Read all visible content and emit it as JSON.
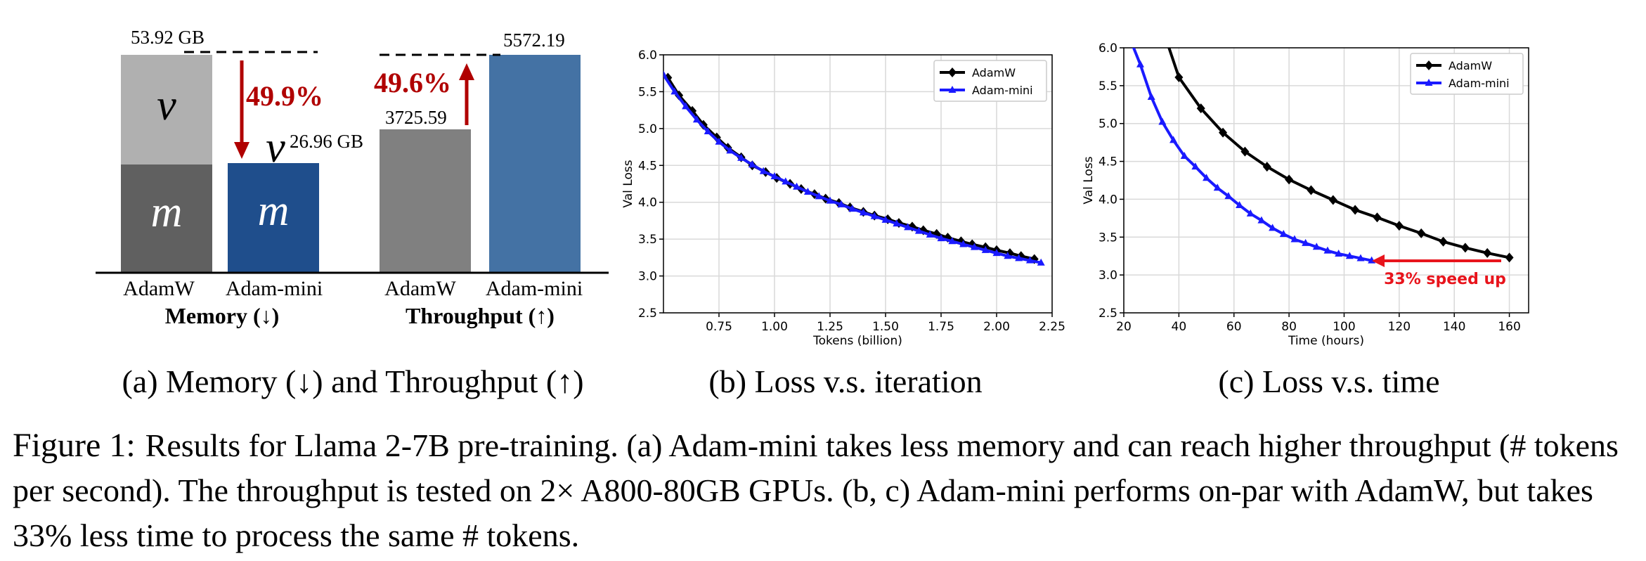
{
  "panels": {
    "a": {
      "subcaption": "(a) Memory (↓) and Throughput (↑)",
      "memory": {
        "group_label": "Memory (↓)",
        "bars": [
          {
            "name": "AdamW",
            "total_value": 53.92,
            "label": "53.92 GB",
            "m_segment": "m",
            "v_segment": "v",
            "m_fraction": 0.5,
            "colors": {
              "m": "#606060",
              "v": "#b0b0b0"
            }
          },
          {
            "name": "Adam-mini",
            "total_value": 26.96,
            "label": "26.96 GB",
            "m_segment": "m",
            "v_segment": "v",
            "colors": {
              "m": "#1f4e8c"
            }
          }
        ],
        "reduction_label": "49.9%"
      },
      "throughput": {
        "group_label": "Throughput (↑)",
        "bars": [
          {
            "name": "AdamW",
            "value": 3725.59,
            "label": "3725.59",
            "color": "#808080"
          },
          {
            "name": "Adam-mini",
            "value": 5572.19,
            "label": "5572.19",
            "color": "#4472a4"
          }
        ],
        "increase_label": "49.6%"
      },
      "accent_color": "#b00000"
    },
    "b": {
      "subcaption": "(b) Loss v.s. iteration"
    },
    "c": {
      "subcaption": "(c) Loss v.s. time",
      "annotation": "33% speed up",
      "annotation_color": "#e8141c"
    }
  },
  "chart_data": [
    {
      "type": "bar",
      "title": "Memory (↓)",
      "categories": [
        "AdamW",
        "Adam-mini"
      ],
      "unit": "GB",
      "series": [
        {
          "name": "m",
          "values": [
            26.96,
            26.96
          ]
        },
        {
          "name": "v",
          "values": [
            26.96,
            0
          ]
        }
      ],
      "totals": [
        53.92,
        26.96
      ],
      "annotation": "49.9%"
    },
    {
      "type": "bar",
      "title": "Throughput (↑)",
      "categories": [
        "AdamW",
        "Adam-mini"
      ],
      "values": [
        3725.59,
        5572.19
      ],
      "annotation": "49.6%"
    },
    {
      "type": "line",
      "xlabel": "Tokens (billion)",
      "ylabel": "Val Loss",
      "xlim": [
        0.5,
        2.25
      ],
      "ylim": [
        2.5,
        6.0
      ],
      "xticks": [
        "0.75",
        "1.00",
        "1.25",
        "1.50",
        "1.75",
        "2.00",
        "2.25"
      ],
      "yticks": [
        "2.5",
        "3.0",
        "3.5",
        "4.0",
        "4.5",
        "5.0",
        "5.5",
        "6.0"
      ],
      "grid": true,
      "legend_position": "top-right",
      "series": [
        {
          "name": "AdamW",
          "color": "#000000",
          "marker": "diamond",
          "x": [
            0.52,
            0.57,
            0.63,
            0.68,
            0.74,
            0.79,
            0.85,
            0.9,
            0.96,
            1.01,
            1.07,
            1.12,
            1.18,
            1.23,
            1.29,
            1.34,
            1.4,
            1.45,
            1.51,
            1.56,
            1.62,
            1.67,
            1.73,
            1.78,
            1.84,
            1.89,
            1.95,
            2.0,
            2.06,
            2.11,
            2.17
          ],
          "y": [
            5.69,
            5.45,
            5.24,
            5.05,
            4.88,
            4.74,
            4.61,
            4.5,
            4.41,
            4.33,
            4.25,
            4.18,
            4.11,
            4.05,
            3.99,
            3.93,
            3.87,
            3.82,
            3.77,
            3.72,
            3.67,
            3.62,
            3.57,
            3.52,
            3.47,
            3.43,
            3.39,
            3.35,
            3.31,
            3.27,
            3.23
          ]
        },
        {
          "name": "Adam-mini",
          "color": "#1a1aff",
          "marker": "triangle",
          "x": [
            0.5,
            0.55,
            0.6,
            0.65,
            0.7,
            0.75,
            0.8,
            0.85,
            0.9,
            0.95,
            1.0,
            1.05,
            1.1,
            1.15,
            1.2,
            1.25,
            1.3,
            1.35,
            1.4,
            1.45,
            1.5,
            1.55,
            1.6,
            1.65,
            1.7,
            1.75,
            1.8,
            1.85,
            1.9,
            1.95,
            2.0,
            2.05,
            2.1,
            2.15,
            2.2
          ],
          "y": [
            5.73,
            5.5,
            5.3,
            5.12,
            4.96,
            4.82,
            4.7,
            4.6,
            4.51,
            4.42,
            4.35,
            4.28,
            4.21,
            4.14,
            4.08,
            4.02,
            3.97,
            3.91,
            3.86,
            3.81,
            3.76,
            3.71,
            3.66,
            3.61,
            3.56,
            3.51,
            3.47,
            3.43,
            3.39,
            3.35,
            3.31,
            3.27,
            3.24,
            3.21,
            3.18
          ]
        }
      ]
    },
    {
      "type": "line",
      "xlabel": "Time (hours)",
      "ylabel": "Val Loss",
      "xlim": [
        20,
        167
      ],
      "ylim": [
        2.5,
        6.0
      ],
      "xticks": [
        "20",
        "40",
        "60",
        "80",
        "100",
        "120",
        "140",
        "160"
      ],
      "yticks": [
        "2.5",
        "3.0",
        "3.5",
        "4.0",
        "4.5",
        "5.0",
        "5.5",
        "6.0"
      ],
      "grid": true,
      "legend_position": "top-right",
      "annotation": "33% speed up",
      "series": [
        {
          "name": "AdamW",
          "color": "#000000",
          "marker": "diamond",
          "x": [
            33,
            40,
            48,
            56,
            64,
            72,
            80,
            88,
            96,
            104,
            112,
            120,
            128,
            136,
            144,
            152,
            160
          ],
          "y": [
            6.37,
            5.61,
            5.2,
            4.88,
            4.63,
            4.43,
            4.26,
            4.12,
            3.99,
            3.86,
            3.76,
            3.65,
            3.55,
            3.44,
            3.36,
            3.29,
            3.23
          ]
        },
        {
          "name": "Adam-mini",
          "color": "#1a1aff",
          "marker": "triangle",
          "x": [
            20,
            23,
            26,
            30,
            34,
            38,
            42,
            46,
            50,
            54,
            58,
            62,
            66,
            70,
            74,
            78,
            82,
            86,
            90,
            94,
            98,
            102,
            106,
            110
          ],
          "y": [
            6.35,
            6.05,
            5.78,
            5.35,
            5.02,
            4.78,
            4.57,
            4.43,
            4.28,
            4.15,
            4.04,
            3.92,
            3.81,
            3.72,
            3.62,
            3.54,
            3.47,
            3.42,
            3.37,
            3.32,
            3.28,
            3.25,
            3.22,
            3.19
          ]
        }
      ]
    }
  ],
  "caption": {
    "label": "Figure 1:",
    "text": "Results for Llama 2-7B pre-training. (a) Adam-mini takes less memory and can reach higher throughput (# tokens per second). The throughput is tested on 2× A800-80GB GPUs. (b, c) Adam-mini performs on-par with AdamW, but takes 33% less time to process the same # tokens."
  }
}
